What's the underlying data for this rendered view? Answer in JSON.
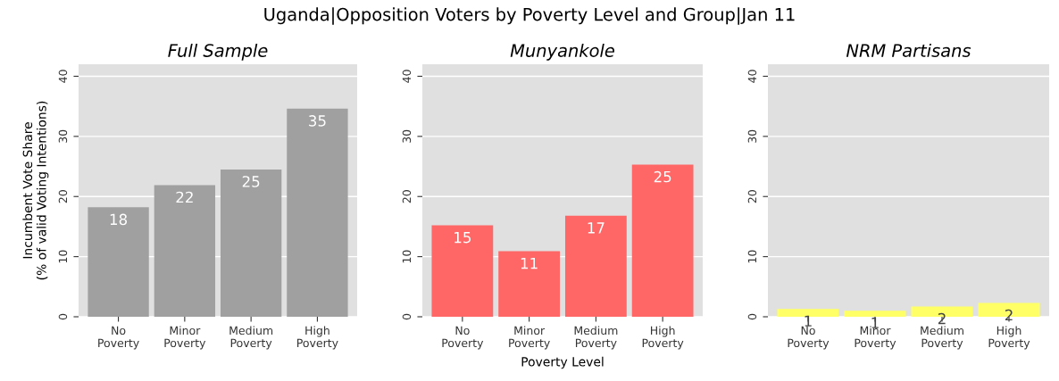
{
  "chart_data": [
    {
      "type": "bar",
      "title": "Full Sample",
      "ylabel": "Incumbent Vote Share\n(% of valid Voting Intentions)",
      "annotations": [
        "Uganda|Opposition Voters by Poverty Level and Group|Jan 11"
      ],
      "categories": [
        "No\nPoverty",
        "Minor\nPoverty",
        "Medium\nPoverty",
        "High\nPoverty"
      ],
      "series": [
        {
          "color": "#a0a0a0",
          "values": [
            18.2,
            21.9,
            24.5,
            34.6
          ],
          "value_labels": [
            "18",
            "22",
            "25",
            "35"
          ]
        }
      ],
      "ylim": [
        0,
        42
      ],
      "yticks": [
        0,
        10,
        20,
        30,
        40
      ],
      "grid": "y"
    },
    {
      "type": "bar",
      "title": "Munyankole",
      "xlabel": "Poverty Level",
      "categories": [
        "No\nPoverty",
        "Minor\nPoverty",
        "Medium\nPoverty",
        "High\nPoverty"
      ],
      "series": [
        {
          "color": "#ff6666",
          "values": [
            15.2,
            10.9,
            16.8,
            25.3
          ],
          "value_labels": [
            "15",
            "11",
            "17",
            "25"
          ]
        }
      ],
      "ylim": [
        0,
        42
      ],
      "yticks": [
        0,
        10,
        20,
        30,
        40
      ],
      "grid": "y"
    },
    {
      "type": "bar",
      "title": "NRM Partisans",
      "categories": [
        "No\nPoverty",
        "Minor\nPoverty",
        "Medium\nPoverty",
        "High\nPoverty"
      ],
      "series": [
        {
          "color": "#ffff66",
          "values": [
            1.3,
            1.0,
            1.7,
            2.3
          ],
          "value_labels": [
            "1",
            "1",
            "2",
            "2"
          ]
        }
      ],
      "ylim": [
        0,
        42
      ],
      "yticks": [
        0,
        10,
        20,
        30,
        40
      ],
      "grid": "y"
    }
  ]
}
